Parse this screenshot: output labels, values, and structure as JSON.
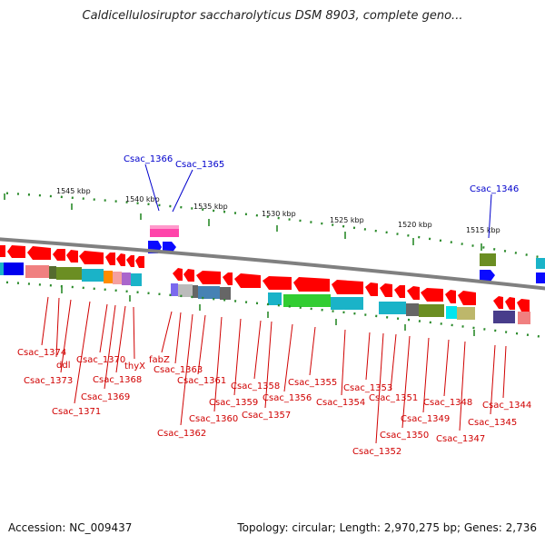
{
  "title": "Caldicellulosiruptor saccharolyticus DSM 8903, complete geno...",
  "footer": {
    "accession": "Accession: NC_009437",
    "summary": "Topology: circular; Length: 2,970,275 bp; Genes: 2,736"
  },
  "colors": {
    "backbone": "#808080",
    "forward_gene": "#0a0aff",
    "reverse_gene": "#ff0000",
    "label_reverse": "#d00000",
    "label_forward": "#0000cc",
    "tick_mark": "#2a8a2a"
  },
  "scale_ticks": [
    {
      "label": "1545 kbp"
    },
    {
      "label": "1540 kbp"
    },
    {
      "label": "1535 kbp"
    },
    {
      "label": "1530 kbp"
    },
    {
      "label": "1525 kbp"
    },
    {
      "label": "1520 kbp"
    },
    {
      "label": "1515 kbp"
    }
  ],
  "forward_labels": [
    {
      "text": "Csac_1366"
    },
    {
      "text": "Csac_1365"
    },
    {
      "text": "Csac_1346"
    }
  ],
  "reverse_labels": [
    {
      "text": "Csac_1374"
    },
    {
      "text": "ddl"
    },
    {
      "text": "Csac_1373"
    },
    {
      "text": "Csac_1371"
    },
    {
      "text": "Csac_1370"
    },
    {
      "text": "Csac_1369"
    },
    {
      "text": "Csac_1368"
    },
    {
      "text": "thyX"
    },
    {
      "text": "fabZ"
    },
    {
      "text": "Csac_1363"
    },
    {
      "text": "Csac_1362"
    },
    {
      "text": "Csac_1361"
    },
    {
      "text": "Csac_1360"
    },
    {
      "text": "Csac_1359"
    },
    {
      "text": "Csac_1358"
    },
    {
      "text": "Csac_1357"
    },
    {
      "text": "Csac_1356"
    },
    {
      "text": "Csac_1355"
    },
    {
      "text": "Csac_1354"
    },
    {
      "text": "Csac_1353"
    },
    {
      "text": "Csac_1352"
    },
    {
      "text": "Csac_1351"
    },
    {
      "text": "Csac_1350"
    },
    {
      "text": "Csac_1349"
    },
    {
      "text": "Csac_1348"
    },
    {
      "text": "Csac_1347"
    },
    {
      "text": "Csac_1345"
    },
    {
      "text": "Csac_1344"
    }
  ]
}
